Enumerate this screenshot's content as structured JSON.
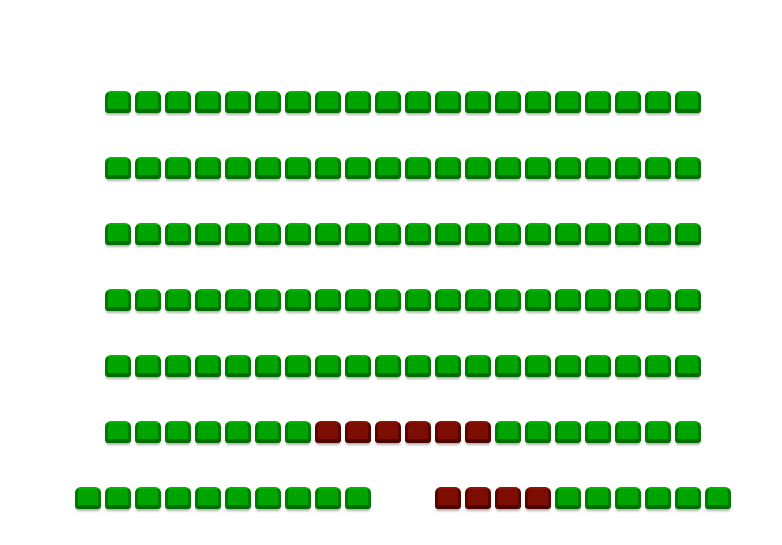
{
  "legend_colors": {
    "available": "#00a400",
    "taken": "#7d0c02"
  },
  "seat_map": {
    "rows": [
      {
        "seats": [
          "A",
          "A",
          "A",
          "A",
          "A",
          "A",
          "A",
          "A",
          "A",
          "A",
          "A",
          "A",
          "A",
          "A",
          "A",
          "A",
          "A",
          "A",
          "A",
          "A"
        ]
      },
      {
        "seats": [
          "A",
          "A",
          "A",
          "A",
          "A",
          "A",
          "A",
          "A",
          "A",
          "A",
          "A",
          "A",
          "A",
          "A",
          "A",
          "A",
          "A",
          "A",
          "A",
          "A"
        ]
      },
      {
        "seats": [
          "A",
          "A",
          "A",
          "A",
          "A",
          "A",
          "A",
          "A",
          "A",
          "A",
          "A",
          "A",
          "A",
          "A",
          "A",
          "A",
          "A",
          "A",
          "A",
          "A"
        ]
      },
      {
        "seats": [
          "A",
          "A",
          "A",
          "A",
          "A",
          "A",
          "A",
          "A",
          "A",
          "A",
          "A",
          "A",
          "A",
          "A",
          "A",
          "A",
          "A",
          "A",
          "A",
          "A"
        ]
      },
      {
        "seats": [
          "A",
          "A",
          "A",
          "A",
          "A",
          "A",
          "A",
          "A",
          "A",
          "A",
          "A",
          "A",
          "A",
          "A",
          "A",
          "A",
          "A",
          "A",
          "A",
          "A"
        ]
      },
      {
        "seats": [
          "A",
          "A",
          "A",
          "A",
          "A",
          "A",
          "A",
          "T",
          "T",
          "T",
          "T",
          "T",
          "T",
          "A",
          "A",
          "A",
          "A",
          "A",
          "A",
          "A"
        ]
      },
      {
        "seats": [
          "A",
          "A",
          "A",
          "A",
          "A",
          "A",
          "A",
          "A",
          "A",
          "A",
          "_",
          "_",
          "T",
          "T",
          "T",
          "T",
          "A",
          "A",
          "A",
          "A",
          "A",
          "A"
        ]
      }
    ],
    "status_legend": {
      "A": "available",
      "T": "taken",
      "_": "no seat"
    }
  }
}
